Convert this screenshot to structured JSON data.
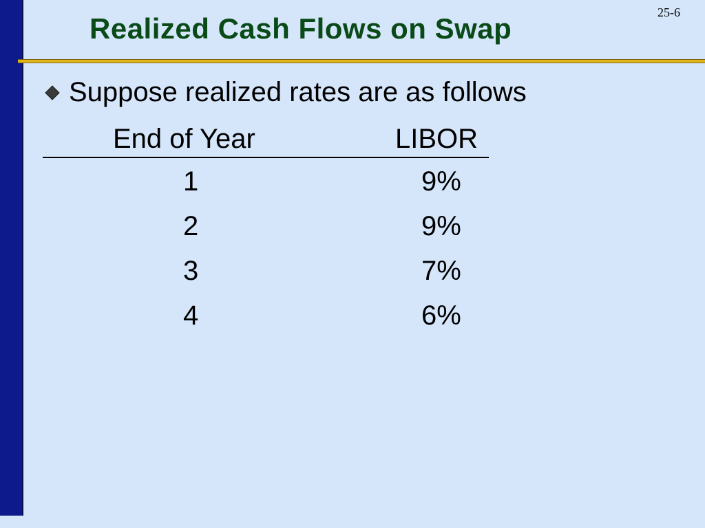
{
  "slide_number": "25-6",
  "title": "Realized Cash Flows on Swap",
  "bullet": {
    "text": "Suppose realized rates are as follows",
    "icon": "diamond-bullet-icon"
  },
  "table": {
    "headers": {
      "year": "End of Year",
      "libor": "LIBOR"
    },
    "rows": [
      {
        "year": "1",
        "libor": "9%"
      },
      {
        "year": "2",
        "libor": "9%"
      },
      {
        "year": "3",
        "libor": "7%"
      },
      {
        "year": "4",
        "libor": "6%"
      }
    ]
  },
  "colors": {
    "background": "#d5e6fb",
    "left_bar": "#0d1a8c",
    "title": "#0a4a17",
    "rule": "#e0b51a"
  }
}
